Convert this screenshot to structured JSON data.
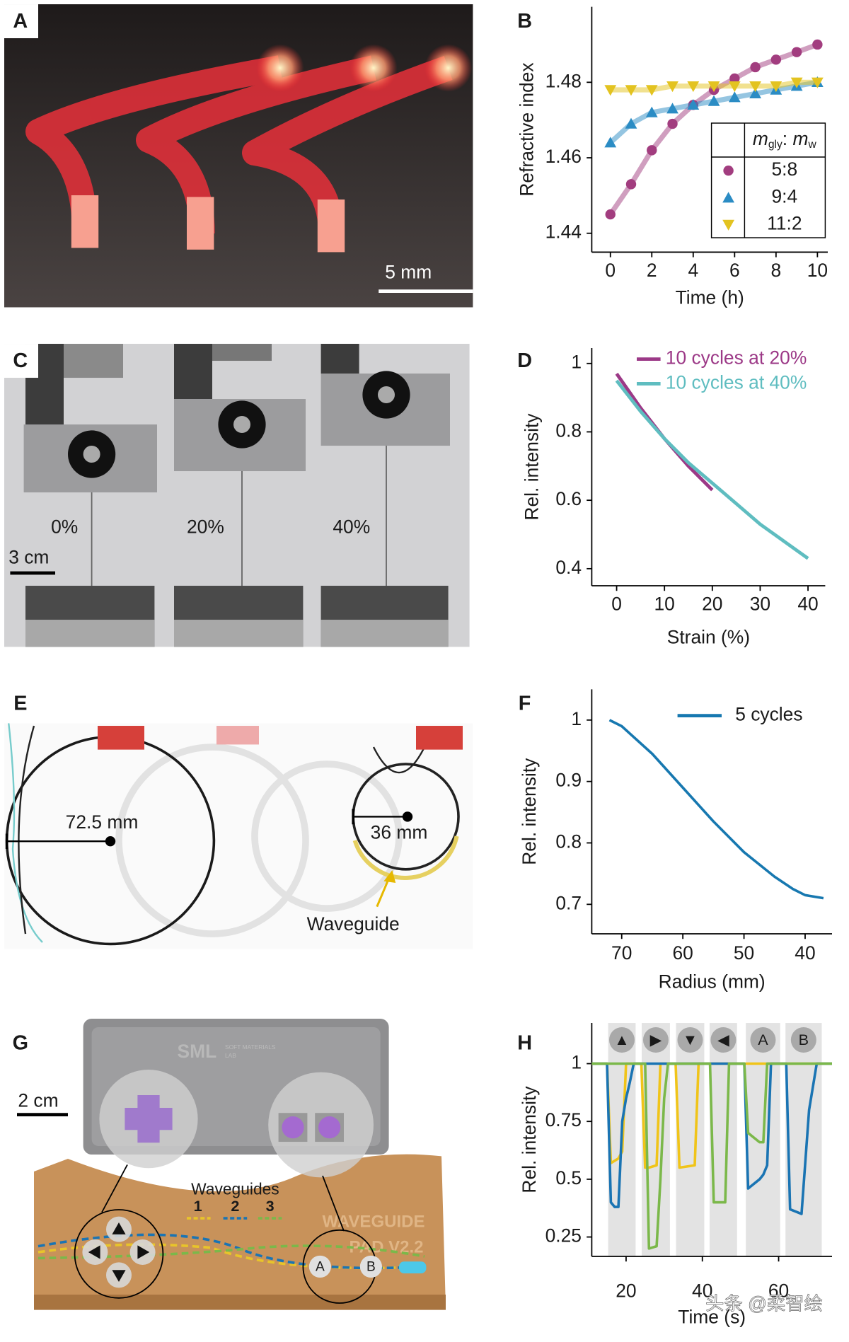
{
  "panels": {
    "A": {
      "letter": "A",
      "scale_bar": "5 mm"
    },
    "C": {
      "letter": "C",
      "strains": [
        "0%",
        "20%",
        "40%"
      ],
      "scale_bar": "3 cm"
    },
    "E": {
      "letter": "E",
      "radii": [
        "72.5 mm",
        "36 mm"
      ],
      "arrow_label": "Waveguide"
    },
    "G": {
      "letter": "G",
      "scale_bar": "2 cm",
      "logo": "SML",
      "logo_sub": [
        "SOFT MATERIALS",
        "LAB"
      ],
      "pad_label": [
        "WAVEGUIDE",
        "PAD V2.2"
      ],
      "waveguides_title": "Waveguides",
      "waveguide_numbers": [
        "1",
        "2",
        "3"
      ],
      "buttons": [
        "A",
        "B"
      ]
    }
  },
  "watermark": "头条 @柔智绘",
  "chart_data": [
    {
      "type": "line",
      "panel": "B",
      "x_label": "Time (h)",
      "y_label": "Refractive index",
      "x": [
        0,
        1,
        2,
        3,
        4,
        5,
        6,
        7,
        8,
        9,
        10
      ],
      "xlim": [
        -0.9,
        10.5
      ],
      "xticks": [
        0,
        2,
        4,
        6,
        8,
        10
      ],
      "ylim": [
        1.435,
        1.5
      ],
      "yticks": [
        1.44,
        1.46,
        1.48
      ],
      "legend": "lower right",
      "legend_title": [
        "m",
        "gly",
        ": ",
        "m",
        "w"
      ],
      "series": [
        {
          "name": "5:8",
          "color": "#a23d7f",
          "marker": "circle",
          "values": [
            1.445,
            1.453,
            1.462,
            1.469,
            1.474,
            1.478,
            1.481,
            1.484,
            1.486,
            1.488,
            1.49
          ]
        },
        {
          "name": "9:4",
          "color": "#2b8cc4",
          "marker": "triangle-up",
          "values": [
            1.464,
            1.469,
            1.472,
            1.473,
            1.474,
            1.475,
            1.476,
            1.477,
            1.478,
            1.479,
            1.48
          ]
        },
        {
          "name": "11:2",
          "color": "#e3c320",
          "marker": "triangle-down",
          "values": [
            1.478,
            1.478,
            1.478,
            1.479,
            1.479,
            1.479,
            1.479,
            1.479,
            1.479,
            1.48,
            1.48
          ]
        }
      ]
    },
    {
      "type": "line",
      "panel": "D",
      "x_label": "Strain (%)",
      "y_label": "Rel. intensity",
      "x": [
        0,
        5,
        10,
        15,
        20,
        25,
        30,
        35,
        40
      ],
      "xlim": [
        -5.2,
        43.6
      ],
      "xticks": [
        0,
        10,
        20,
        30,
        40
      ],
      "ylim": [
        0.35,
        1.045
      ],
      "yticks": [
        0.4,
        0.6,
        0.8,
        1
      ],
      "legend": "upper right",
      "series": [
        {
          "name": "10 cycles at 20%",
          "color": "#9c3987",
          "values": [
            0.97,
            0.87,
            0.78,
            0.7,
            0.63,
            null,
            null,
            null,
            null
          ]
        },
        {
          "name": "10 cycles at 40%",
          "color": "#5fbdc0",
          "values": [
            0.95,
            0.86,
            0.78,
            0.71,
            0.65,
            0.59,
            0.53,
            0.48,
            0.43
          ]
        }
      ]
    },
    {
      "type": "line",
      "panel": "F",
      "x_label": "Radius (mm)",
      "y_label": "Rel. intensity",
      "x": [
        72,
        70,
        65,
        60,
        55,
        50,
        45,
        42,
        40,
        37
      ],
      "xlim": [
        74.9,
        35.6
      ],
      "xticks": [
        70,
        60,
        50,
        40
      ],
      "ylim": [
        0.652,
        1.05
      ],
      "yticks": [
        0.7,
        0.8,
        0.9,
        1
      ],
      "legend": "upper right",
      "series": [
        {
          "name": "5 cycles",
          "color": "#1778b0",
          "values": [
            1.0,
            0.99,
            0.945,
            0.89,
            0.835,
            0.785,
            0.745,
            0.725,
            0.715,
            0.71
          ]
        }
      ]
    },
    {
      "type": "line",
      "panel": "H",
      "x_label": "Time (s)",
      "y_label": "Rel. intensity",
      "x": [
        11,
        15,
        16,
        17,
        18,
        19,
        20,
        21,
        22,
        24,
        25,
        26,
        28,
        29,
        30,
        31,
        33,
        34,
        38,
        39,
        42,
        43,
        46,
        47,
        51,
        52,
        55,
        56,
        57,
        58,
        62,
        63,
        66,
        68,
        70,
        74
      ],
      "xlim": [
        11,
        74
      ],
      "xticks": [
        20,
        40,
        60
      ],
      "ylim": [
        0.166,
        1.176
      ],
      "yticks": [
        0.25,
        0.5,
        0.75,
        1
      ],
      "bands": [
        {
          "start": 15.3,
          "end": 22.5,
          "label": "▲"
        },
        {
          "start": 24.1,
          "end": 31.5,
          "label": "▶"
        },
        {
          "start": 33.1,
          "end": 40.5,
          "label": "▼"
        },
        {
          "start": 41.9,
          "end": 49.1,
          "label": "◀"
        },
        {
          "start": 51.4,
          "end": 60.4,
          "label": "A"
        },
        {
          "start": 61.8,
          "end": 71.3,
          "label": "B"
        }
      ],
      "series": [
        {
          "color": "#f0c419",
          "values": [
            1,
            1,
            0.57,
            0.58,
            0.59,
            0.62,
            1,
            1,
            1,
            1,
            0.55,
            0.55,
            0.56,
            1,
            1,
            1,
            1,
            0.55,
            0.56,
            1,
            1,
            1,
            1,
            1,
            1,
            1,
            1,
            1,
            1,
            1,
            1,
            1,
            1,
            1,
            1,
            1
          ]
        },
        {
          "color": "#1a74b3",
          "values": [
            1,
            1,
            0.4,
            0.38,
            0.38,
            0.75,
            0.85,
            0.92,
            1,
            1,
            1,
            1,
            1,
            1,
            1,
            1,
            1,
            1,
            1,
            1,
            1,
            1,
            1,
            1,
            1,
            0.46,
            0.5,
            0.52,
            0.56,
            1,
            1,
            0.37,
            0.35,
            0.8,
            1,
            1
          ]
        },
        {
          "color": "#7bb84a",
          "values": [
            1,
            1,
            1,
            1,
            1,
            1,
            1,
            1,
            1,
            1,
            1,
            0.2,
            0.21,
            0.5,
            0.85,
            1,
            1,
            1,
            1,
            1,
            1,
            0.4,
            0.4,
            1,
            1,
            0.7,
            0.66,
            0.66,
            1,
            1,
            1,
            1,
            1,
            1,
            1,
            1
          ]
        }
      ]
    }
  ]
}
